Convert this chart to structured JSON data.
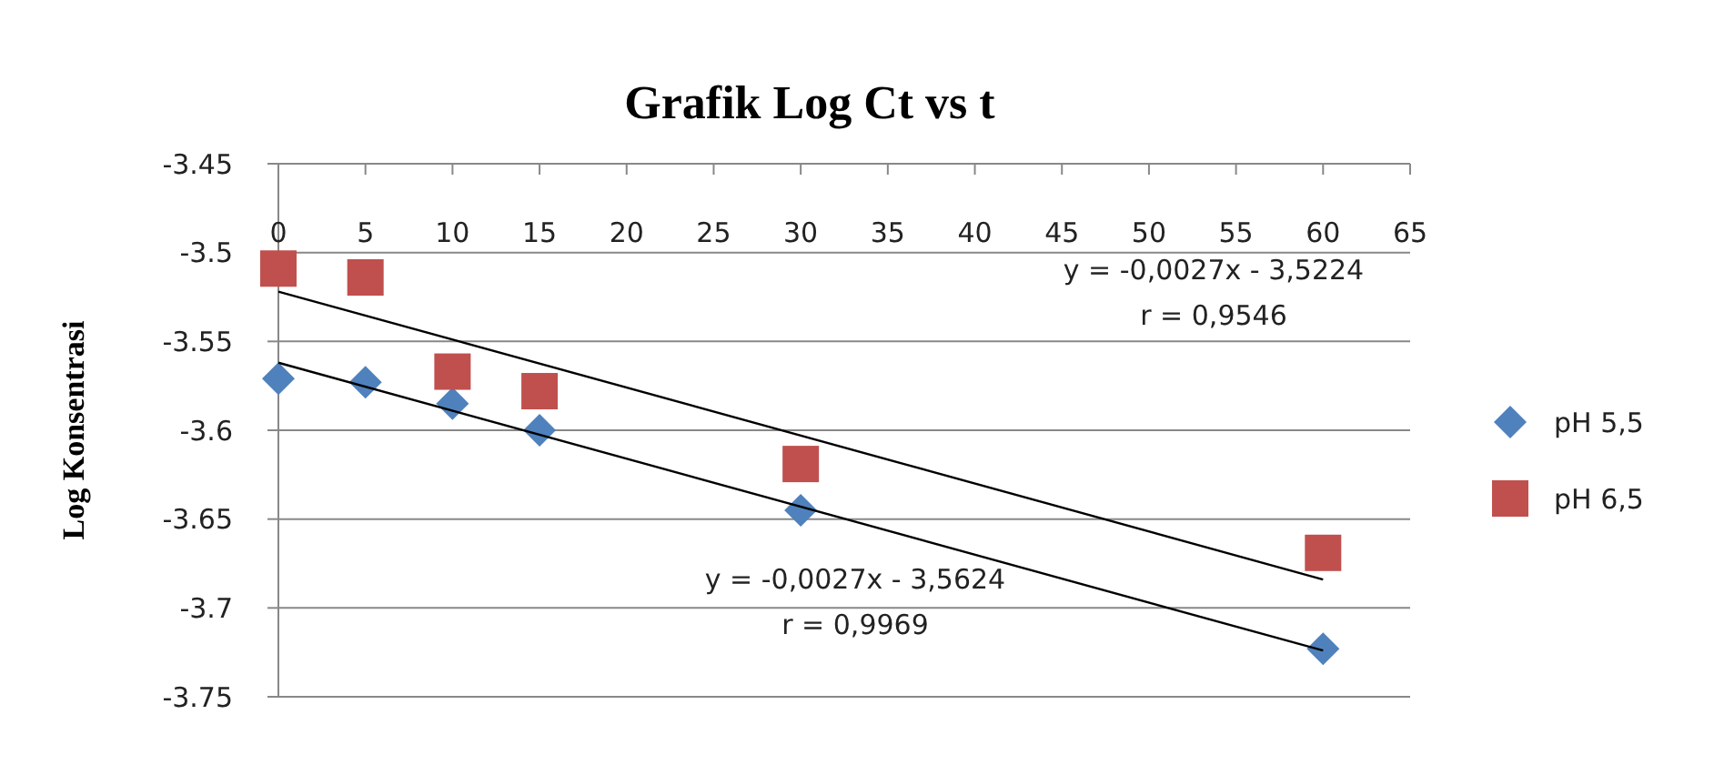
{
  "chart_data": {
    "type": "scatter",
    "title": "Grafik Log Ct vs t",
    "ylabel": "Log Konsentrasi",
    "xlim": [
      0,
      65
    ],
    "xticks": [
      0,
      5,
      10,
      15,
      20,
      25,
      30,
      35,
      40,
      45,
      50,
      55,
      60,
      65
    ],
    "ylim": [
      -3.75,
      -3.45
    ],
    "yticks": [
      -3.75,
      -3.7,
      -3.65,
      -3.6,
      -3.55,
      -3.5,
      -3.45
    ],
    "grid": "y",
    "legend": "right",
    "series": [
      {
        "name": "pH 5,5",
        "color": "#4f81bd",
        "marker": "diamond",
        "x": [
          0,
          5,
          10,
          15,
          30,
          60
        ],
        "values": [
          -3.571,
          -3.573,
          -3.585,
          -3.6,
          -3.645,
          -3.723
        ]
      },
      {
        "name": "pH 6,5",
        "color": "#c0504d",
        "marker": "square",
        "x": [
          0,
          5,
          10,
          15,
          30,
          60
        ],
        "values": [
          -3.509,
          -3.514,
          -3.567,
          -3.578,
          -3.619,
          -3.669
        ]
      },
      {
        "type": "line",
        "color": "#000000",
        "x": [
          0,
          60
        ],
        "values": [
          -3.562,
          -3.724
        ]
      },
      {
        "type": "line",
        "color": "#000000",
        "x": [
          0,
          60
        ],
        "values": [
          -3.522,
          -3.684
        ]
      }
    ],
    "annotations": [
      "y = -0,0027x - 3,5224",
      "r = 0,9546",
      "y = -0,0027x - 3,5624",
      "r = 0,9969"
    ]
  }
}
